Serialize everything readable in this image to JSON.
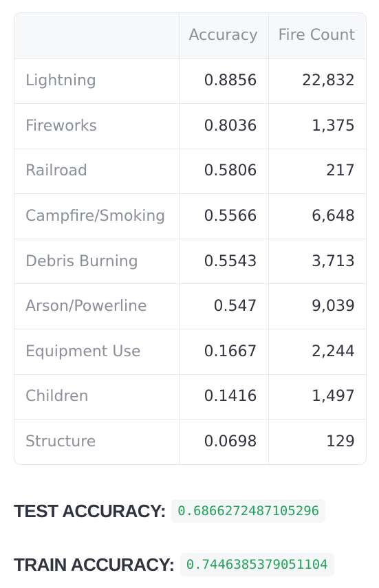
{
  "table": {
    "headers": [
      "",
      "Accuracy",
      "Fire Count"
    ],
    "rows": [
      {
        "label": "Lightning",
        "accuracy": "0.8856",
        "count": "22,832"
      },
      {
        "label": "Fireworks",
        "accuracy": "0.8036",
        "count": "1,375"
      },
      {
        "label": "Railroad",
        "accuracy": "0.5806",
        "count": "217"
      },
      {
        "label": "Campfire/Smoking",
        "accuracy": "0.5566",
        "count": "6,648"
      },
      {
        "label": "Debris Burning",
        "accuracy": "0.5543",
        "count": "3,713"
      },
      {
        "label": "Arson/Powerline",
        "accuracy": "0.547",
        "count": "9,039"
      },
      {
        "label": "Equipment Use",
        "accuracy": "0.1667",
        "count": "2,244"
      },
      {
        "label": "Children",
        "accuracy": "0.1416",
        "count": "1,497"
      },
      {
        "label": "Structure",
        "accuracy": "0.0698",
        "count": "129"
      }
    ]
  },
  "metrics": {
    "test_label": "TEST ACCURACY:",
    "test_value": "0.6866272487105296",
    "train_label": "TRAIN ACCURACY:",
    "train_value": "0.7446385379051104"
  },
  "colors": {
    "value_green": "#21a35a",
    "label_gray": "#8a8f99",
    "text_dark": "#31333f"
  }
}
